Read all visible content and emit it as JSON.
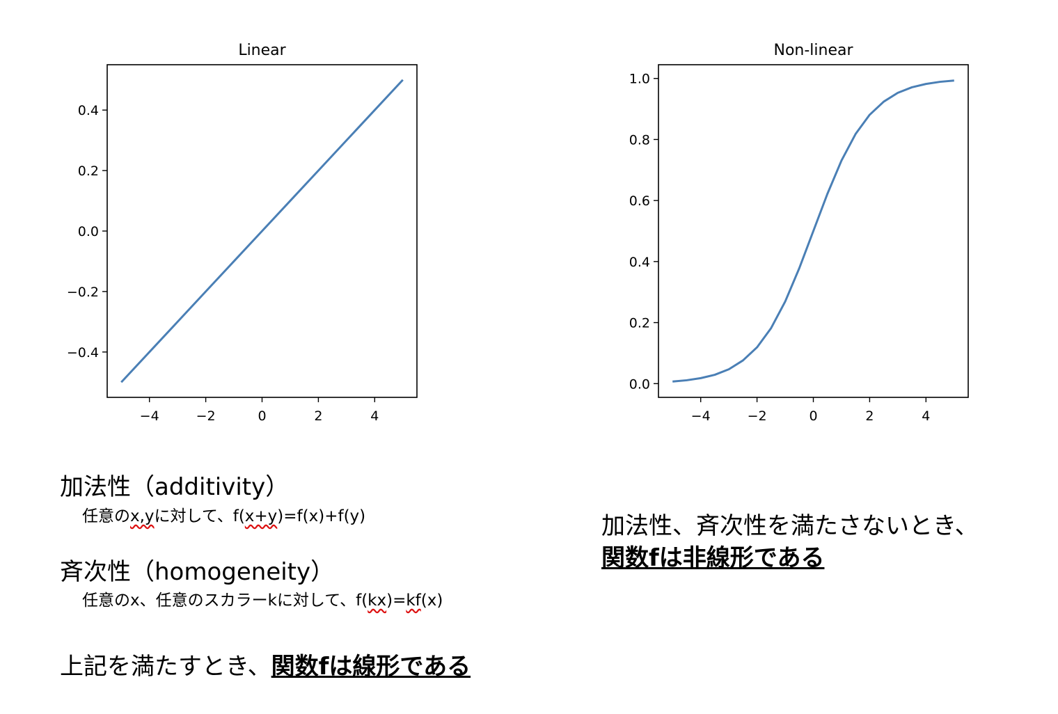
{
  "chart_data": [
    {
      "type": "line",
      "title": "Linear",
      "xlabel": "",
      "ylabel": "",
      "xlim": [
        -5.5,
        5.5
      ],
      "ylim": [
        -0.55,
        0.55
      ],
      "xticks": [
        -4,
        -2,
        0,
        2,
        4
      ],
      "xtick_labels": [
        "−4",
        "−2",
        "0",
        "2",
        "4"
      ],
      "yticks": [
        -0.4,
        -0.2,
        0.0,
        0.2,
        0.4
      ],
      "ytick_labels": [
        "−0.4",
        "−0.2",
        "0.0",
        "0.2",
        "0.4"
      ],
      "grid": false,
      "series": [
        {
          "color": "#4a7fb5",
          "x": [
            -5,
            -4,
            -3,
            -2,
            -1,
            0,
            1,
            2,
            3,
            4,
            5
          ],
          "y": [
            -0.5,
            -0.4,
            -0.3,
            -0.2,
            -0.1,
            0.0,
            0.1,
            0.2,
            0.3,
            0.4,
            0.5
          ]
        }
      ]
    },
    {
      "type": "line",
      "title": "Non-linear",
      "xlabel": "",
      "ylabel": "",
      "xlim": [
        -5.5,
        5.5
      ],
      "ylim": [
        -0.045,
        1.045
      ],
      "xticks": [
        -4,
        -2,
        0,
        2,
        4
      ],
      "xtick_labels": [
        "−4",
        "−2",
        "0",
        "2",
        "4"
      ],
      "yticks": [
        0.0,
        0.2,
        0.4,
        0.6,
        0.8,
        1.0
      ],
      "ytick_labels": [
        "0.0",
        "0.2",
        "0.4",
        "0.6",
        "0.8",
        "1.0"
      ],
      "grid": false,
      "series": [
        {
          "color": "#4a7fb5",
          "x": [
            -5,
            -4.5,
            -4,
            -3.5,
            -3,
            -2.5,
            -2,
            -1.5,
            -1,
            -0.5,
            0,
            0.5,
            1,
            1.5,
            2,
            2.5,
            3,
            3.5,
            4,
            4.5,
            5
          ],
          "y": [
            0.007,
            0.011,
            0.018,
            0.029,
            0.047,
            0.076,
            0.119,
            0.182,
            0.269,
            0.378,
            0.5,
            0.622,
            0.731,
            0.818,
            0.881,
            0.924,
            0.953,
            0.971,
            0.982,
            0.989,
            0.993
          ]
        }
      ]
    }
  ],
  "notes": {
    "additivity_heading": "加法性（additivity）",
    "additivity_body_pre": "任意の",
    "additivity_body_xy": "x,y",
    "additivity_body_mid": "に対して、",
    "additivity_body_f1": "f(",
    "additivity_body_f2": "x+y",
    "additivity_body_f3": ")=f(x)+f(y)",
    "homogeneity_heading": "斉次性（homogeneity）",
    "homogeneity_body_pre": "任意のx、任意のスカラーkに対して、f(",
    "homogeneity_body_kx": "kx",
    "homogeneity_body_mid": ")=",
    "homogeneity_body_kf": "kf",
    "homogeneity_body_end": "(x)",
    "linear_conclusion_pre": "上記を満たすとき、",
    "linear_conclusion_emph": "関数fは線形である",
    "nonlinear_conclusion_pre": "加法性、斉次性を満たさないとき、",
    "nonlinear_conclusion_emph": "関数fは非線形である"
  }
}
